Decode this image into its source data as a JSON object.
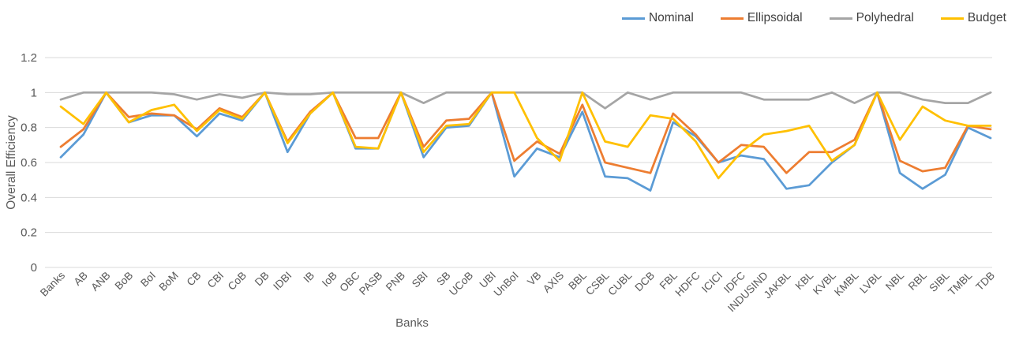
{
  "chart_data": {
    "type": "line",
    "title": "",
    "xlabel": "Banks",
    "ylabel": "Overall Efficiency",
    "ylim": [
      0,
      1.2
    ],
    "ytick_labels": [
      "0",
      "0.2",
      "0.4",
      "0.6",
      "0.8",
      "1",
      "1.2"
    ],
    "yticks": [
      0,
      0.2,
      0.4,
      0.6,
      0.8,
      1,
      1.2
    ],
    "grid": true,
    "legend_position": "top-right",
    "categories": [
      "Banks",
      "AB",
      "ANB",
      "BoB",
      "BoI",
      "BoM",
      "CB",
      "CBI",
      "CoB",
      "DB",
      "IDBI",
      "IB",
      "IoB",
      "OBC",
      "PASB",
      "PNB",
      "SBI",
      "SB",
      "UCoB",
      "UBI",
      "UnBoI",
      "VB",
      "AXIS",
      "BBL",
      "CSBL",
      "CUBL",
      "DCB",
      "FBL",
      "HDFC",
      "ICICI",
      "IDFC",
      "INDUSIND",
      "JAKBL",
      "KBL",
      "KVBL",
      "KMBL",
      "LVBL",
      "NBL",
      "RBL",
      "SIBL",
      "TMBL",
      "TDB"
    ],
    "series": [
      {
        "name": "Nominal",
        "color": "#5B9BD5",
        "values": [
          0.63,
          0.76,
          1.0,
          0.83,
          0.87,
          0.87,
          0.75,
          0.88,
          0.84,
          1.0,
          0.66,
          0.88,
          1.0,
          0.68,
          0.68,
          1.0,
          0.63,
          0.8,
          0.81,
          1.0,
          0.52,
          0.68,
          0.63,
          0.89,
          0.52,
          0.51,
          0.44,
          0.83,
          0.75,
          0.6,
          0.64,
          0.62,
          0.45,
          0.47,
          0.6,
          0.7,
          1.0,
          0.54,
          0.45,
          0.53,
          0.8,
          0.74
        ]
      },
      {
        "name": "Ellipsoidal",
        "color": "#ED7D31",
        "values": [
          0.69,
          0.79,
          1.0,
          0.86,
          0.88,
          0.87,
          0.79,
          0.91,
          0.86,
          1.0,
          0.72,
          0.89,
          1.0,
          0.74,
          0.74,
          1.0,
          0.69,
          0.84,
          0.85,
          1.0,
          0.61,
          0.72,
          0.65,
          0.93,
          0.6,
          0.57,
          0.54,
          0.88,
          0.76,
          0.6,
          0.7,
          0.69,
          0.54,
          0.66,
          0.66,
          0.73,
          1.0,
          0.61,
          0.55,
          0.57,
          0.81,
          0.79
        ]
      },
      {
        "name": "Polyhedral",
        "color": "#A5A5A5",
        "values": [
          0.96,
          1.0,
          1.0,
          1.0,
          1.0,
          0.99,
          0.96,
          0.99,
          0.97,
          1.0,
          0.99,
          0.99,
          1.0,
          1.0,
          1.0,
          1.0,
          0.94,
          1.0,
          1.0,
          1.0,
          1.0,
          1.0,
          1.0,
          1.0,
          0.91,
          1.0,
          0.96,
          1.0,
          1.0,
          1.0,
          1.0,
          0.96,
          0.96,
          0.96,
          1.0,
          0.94,
          1.0,
          1.0,
          0.96,
          0.94,
          0.94,
          1.0
        ]
      },
      {
        "name": "Budget",
        "color": "#FFC000",
        "values": [
          0.92,
          0.82,
          1.0,
          0.83,
          0.9,
          0.93,
          0.78,
          0.9,
          0.85,
          1.0,
          0.71,
          0.88,
          1.0,
          0.69,
          0.68,
          1.0,
          0.66,
          0.81,
          0.82,
          1.0,
          1.0,
          0.74,
          0.61,
          1.0,
          0.72,
          0.69,
          0.87,
          0.85,
          0.72,
          0.51,
          0.66,
          0.76,
          0.78,
          0.81,
          0.61,
          0.7,
          1.0,
          0.73,
          0.92,
          0.84,
          0.81,
          0.81
        ]
      }
    ]
  },
  "colors": {
    "grid": "#D9D9D9",
    "axis_text": "#595959",
    "legend_text": "#404040",
    "background": "#FFFFFF"
  }
}
